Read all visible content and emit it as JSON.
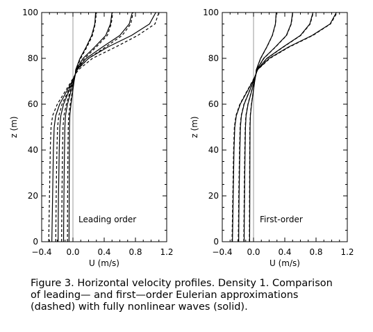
{
  "chart_data": [
    {
      "type": "line",
      "annotation": "Leading order",
      "xlabel": "U (m/s)",
      "ylabel": "z (m)",
      "xlim": [
        -0.4,
        1.2
      ],
      "ylim": [
        0,
        100
      ],
      "xticks": [
        "−0.4",
        "0.0",
        "0.4",
        "0.8",
        "1.2"
      ],
      "yticks": [
        "0",
        "20",
        "40",
        "60",
        "80",
        "100"
      ],
      "reference_line_x": 0.0,
      "series": [
        {
          "style": "solid",
          "z": [
            0,
            10,
            20,
            30,
            40,
            50,
            55,
            60,
            65,
            70,
            73,
            75,
            80,
            85,
            90,
            95,
            100
          ],
          "u": [
            -0.27,
            -0.265,
            -0.26,
            -0.255,
            -0.25,
            -0.24,
            -0.22,
            -0.17,
            -0.09,
            -0.01,
            0.03,
            0.05,
            0.2,
            0.45,
            0.75,
            0.98,
            1.06
          ]
        },
        {
          "style": "dashed",
          "z": [
            0,
            10,
            20,
            30,
            40,
            50,
            55,
            60,
            65,
            70,
            73,
            75,
            80,
            85,
            90,
            95,
            100
          ],
          "u": [
            -0.31,
            -0.305,
            -0.3,
            -0.295,
            -0.29,
            -0.28,
            -0.26,
            -0.2,
            -0.11,
            -0.02,
            0.03,
            0.07,
            0.25,
            0.55,
            0.83,
            1.05,
            1.1
          ]
        },
        {
          "style": "solid",
          "z": [
            0,
            10,
            20,
            30,
            40,
            50,
            55,
            60,
            65,
            70,
            73,
            75,
            80,
            85,
            90,
            95,
            100
          ],
          "u": [
            -0.19,
            -0.188,
            -0.185,
            -0.18,
            -0.175,
            -0.168,
            -0.155,
            -0.12,
            -0.06,
            0.0,
            0.03,
            0.045,
            0.17,
            0.38,
            0.6,
            0.72,
            0.76
          ]
        },
        {
          "style": "dashed",
          "z": [
            0,
            10,
            20,
            30,
            40,
            50,
            55,
            60,
            65,
            70,
            73,
            75,
            80,
            85,
            90,
            95,
            100
          ],
          "u": [
            -0.22,
            -0.217,
            -0.214,
            -0.21,
            -0.205,
            -0.197,
            -0.18,
            -0.14,
            -0.07,
            -0.01,
            0.03,
            0.055,
            0.2,
            0.42,
            0.63,
            0.74,
            0.77
          ]
        },
        {
          "style": "solid",
          "z": [
            0,
            10,
            20,
            30,
            40,
            50,
            55,
            60,
            65,
            70,
            73,
            75,
            80,
            85,
            90,
            95,
            100
          ],
          "u": [
            -0.12,
            -0.118,
            -0.115,
            -0.112,
            -0.108,
            -0.103,
            -0.095,
            -0.07,
            -0.03,
            0.01,
            0.03,
            0.04,
            0.13,
            0.28,
            0.42,
            0.48,
            0.5
          ]
        },
        {
          "style": "dashed",
          "z": [
            0,
            10,
            20,
            30,
            40,
            50,
            55,
            60,
            65,
            70,
            73,
            75,
            80,
            85,
            90,
            95,
            100
          ],
          "u": [
            -0.145,
            -0.143,
            -0.14,
            -0.137,
            -0.133,
            -0.127,
            -0.115,
            -0.085,
            -0.04,
            0.0,
            0.03,
            0.045,
            0.15,
            0.3,
            0.44,
            0.49,
            0.51
          ]
        },
        {
          "style": "solid",
          "z": [
            0,
            10,
            20,
            30,
            40,
            50,
            55,
            60,
            65,
            70,
            73,
            75,
            80,
            85,
            90,
            95,
            100
          ],
          "u": [
            -0.05,
            -0.049,
            -0.048,
            -0.047,
            -0.046,
            -0.044,
            -0.04,
            -0.025,
            -0.005,
            0.015,
            0.03,
            0.035,
            0.09,
            0.17,
            0.24,
            0.28,
            0.29
          ]
        },
        {
          "style": "dashed",
          "z": [
            0,
            10,
            20,
            30,
            40,
            50,
            55,
            60,
            65,
            70,
            73,
            75,
            80,
            85,
            90,
            95,
            100
          ],
          "u": [
            -0.07,
            -0.069,
            -0.068,
            -0.066,
            -0.064,
            -0.06,
            -0.055,
            -0.035,
            -0.01,
            0.01,
            0.03,
            0.038,
            0.1,
            0.18,
            0.25,
            0.285,
            0.3
          ]
        }
      ]
    },
    {
      "type": "line",
      "annotation": "First-order",
      "xlabel": "U (m/s)",
      "ylabel": "z (m)",
      "xlim": [
        -0.4,
        1.2
      ],
      "ylim": [
        0,
        100
      ],
      "xticks": [
        "−0.4",
        "0.0",
        "0.4",
        "0.8",
        "1.2"
      ],
      "yticks": [
        "0",
        "20",
        "40",
        "60",
        "80",
        "100"
      ],
      "reference_line_x": 0.0,
      "series": [
        {
          "style": "solid",
          "z": [
            0,
            10,
            20,
            30,
            40,
            50,
            55,
            60,
            65,
            70,
            73,
            75,
            80,
            85,
            90,
            95,
            100
          ],
          "u": [
            -0.27,
            -0.265,
            -0.26,
            -0.255,
            -0.25,
            -0.24,
            -0.22,
            -0.17,
            -0.09,
            -0.01,
            0.03,
            0.05,
            0.2,
            0.45,
            0.75,
            0.98,
            1.06
          ]
        },
        {
          "style": "dashed",
          "z": [
            0,
            10,
            20,
            30,
            40,
            50,
            55,
            60,
            65,
            70,
            73,
            75,
            80,
            85,
            90,
            95,
            100
          ],
          "u": [
            -0.275,
            -0.27,
            -0.265,
            -0.26,
            -0.255,
            -0.245,
            -0.225,
            -0.175,
            -0.095,
            -0.015,
            0.03,
            0.052,
            0.21,
            0.46,
            0.76,
            0.985,
            1.07
          ]
        },
        {
          "style": "solid",
          "z": [
            0,
            10,
            20,
            30,
            40,
            50,
            55,
            60,
            65,
            70,
            73,
            75,
            80,
            85,
            90,
            95,
            100
          ],
          "u": [
            -0.19,
            -0.188,
            -0.185,
            -0.18,
            -0.175,
            -0.168,
            -0.155,
            -0.12,
            -0.06,
            0.0,
            0.03,
            0.045,
            0.17,
            0.38,
            0.6,
            0.72,
            0.76
          ]
        },
        {
          "style": "dashed",
          "z": [
            0,
            10,
            20,
            30,
            40,
            50,
            55,
            60,
            65,
            70,
            73,
            75,
            80,
            85,
            90,
            95,
            100
          ],
          "u": [
            -0.195,
            -0.192,
            -0.189,
            -0.184,
            -0.179,
            -0.172,
            -0.158,
            -0.123,
            -0.062,
            -0.002,
            0.03,
            0.047,
            0.175,
            0.385,
            0.605,
            0.725,
            0.765
          ]
        },
        {
          "style": "solid",
          "z": [
            0,
            10,
            20,
            30,
            40,
            50,
            55,
            60,
            65,
            70,
            73,
            75,
            80,
            85,
            90,
            95,
            100
          ],
          "u": [
            -0.12,
            -0.118,
            -0.115,
            -0.112,
            -0.108,
            -0.103,
            -0.095,
            -0.07,
            -0.03,
            0.01,
            0.03,
            0.04,
            0.13,
            0.28,
            0.42,
            0.48,
            0.5
          ]
        },
        {
          "style": "dashed",
          "z": [
            0,
            10,
            20,
            30,
            40,
            50,
            55,
            60,
            65,
            70,
            73,
            75,
            80,
            85,
            90,
            95,
            100
          ],
          "u": [
            -0.124,
            -0.122,
            -0.119,
            -0.116,
            -0.112,
            -0.106,
            -0.098,
            -0.072,
            -0.032,
            0.009,
            0.03,
            0.041,
            0.133,
            0.283,
            0.423,
            0.483,
            0.503
          ]
        },
        {
          "style": "solid",
          "z": [
            0,
            10,
            20,
            30,
            40,
            50,
            55,
            60,
            65,
            70,
            73,
            75,
            80,
            85,
            90,
            95,
            100
          ],
          "u": [
            -0.05,
            -0.049,
            -0.048,
            -0.047,
            -0.046,
            -0.044,
            -0.04,
            -0.025,
            -0.005,
            0.015,
            0.03,
            0.035,
            0.09,
            0.17,
            0.24,
            0.28,
            0.29
          ]
        },
        {
          "style": "dashed",
          "z": [
            0,
            10,
            20,
            30,
            40,
            50,
            55,
            60,
            65,
            70,
            73,
            75,
            80,
            85,
            90,
            95,
            100
          ],
          "u": [
            -0.053,
            -0.052,
            -0.051,
            -0.05,
            -0.049,
            -0.047,
            -0.042,
            -0.027,
            -0.006,
            0.014,
            0.03,
            0.036,
            0.092,
            0.172,
            0.242,
            0.282,
            0.292
          ]
        }
      ]
    }
  ],
  "caption": "Figure 3. Horizontal velocity profiles. Density 1. Comparison\nof leading— and first—order Eulerian approximations\n(dashed) with fully nonlinear waves (solid)."
}
